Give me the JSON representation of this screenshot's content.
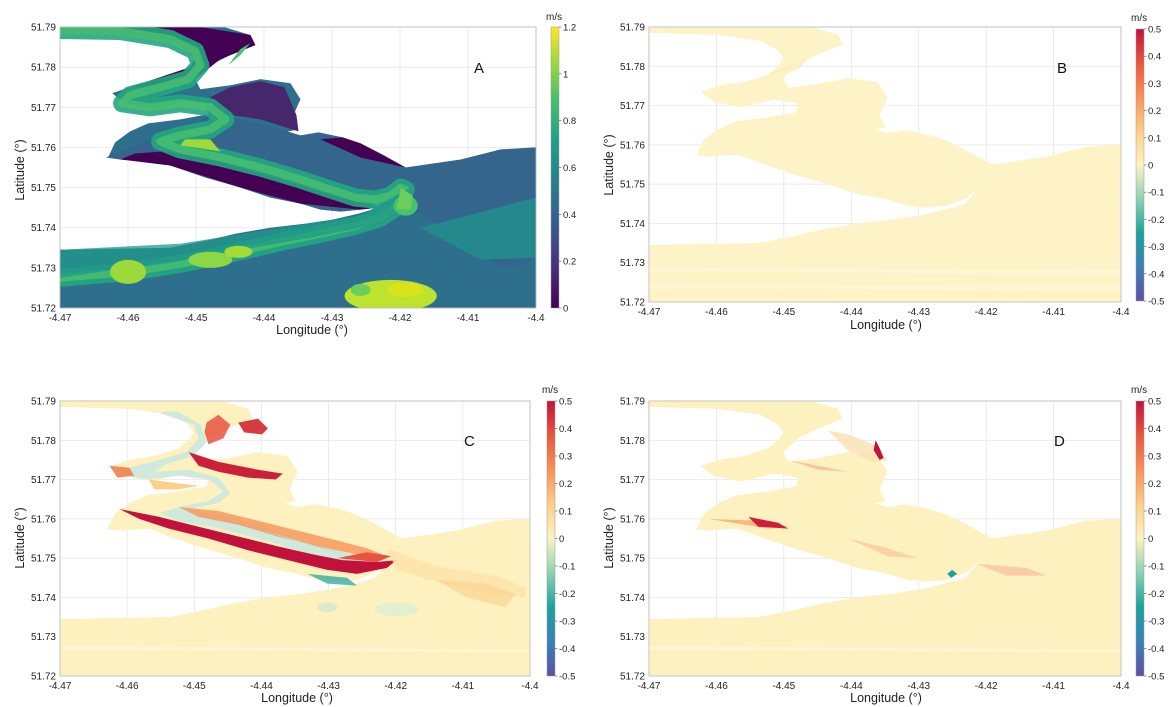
{
  "panels": [
    {
      "id": "A",
      "letter": "A",
      "xlabel": "Longitude (°)",
      "ylabel": "Latitude (°)",
      "x_ticks": [
        "-4.47",
        "-4.46",
        "-4.45",
        "-4.44",
        "-4.43",
        "-4.42",
        "-4.41",
        "-4.4"
      ],
      "y_ticks": [
        "51.72",
        "51.73",
        "51.74",
        "51.75",
        "51.76",
        "51.77",
        "51.78",
        "51.79"
      ],
      "colorbar": {
        "unit": "m/s",
        "ticks": [
          "0",
          "0.2",
          "0.4",
          "0.6",
          "0.8",
          "1",
          "1.2"
        ],
        "range": [
          0,
          1.2
        ],
        "colormap": "viridis"
      }
    },
    {
      "id": "B",
      "letter": "B",
      "xlabel": "Longitude (°)",
      "ylabel": "Latitude (°)",
      "x_ticks": [
        "-4.47",
        "-4.46",
        "-4.45",
        "-4.44",
        "-4.43",
        "-4.42",
        "-4.41",
        "-4.4"
      ],
      "y_ticks": [
        "51.72",
        "51.73",
        "51.74",
        "51.75",
        "51.76",
        "51.77",
        "51.78",
        "51.79"
      ],
      "colorbar": {
        "unit": "m/s",
        "ticks": [
          "-0.5",
          "-0.4",
          "-0.3",
          "-0.2",
          "-0.1",
          "0",
          "0.1",
          "0.2",
          "0.3",
          "0.4",
          "0.5"
        ],
        "range": [
          -0.5,
          0.5
        ],
        "colormap": "spectral"
      }
    },
    {
      "id": "C",
      "letter": "C",
      "xlabel": "Longitude (°)",
      "ylabel": "Latitude (°)",
      "x_ticks": [
        "-4.47",
        "-4.46",
        "-4.45",
        "-4.44",
        "-4.43",
        "-4.42",
        "-4.41",
        "-4.4"
      ],
      "y_ticks": [
        "51.72",
        "51.73",
        "51.74",
        "51.75",
        "51.76",
        "51.77",
        "51.78",
        "51.79"
      ],
      "colorbar": {
        "unit": "m/s",
        "ticks": [
          "-0.5",
          "-0.4",
          "-0.3",
          "-0.2",
          "-0.1",
          "0",
          "0.1",
          "0.2",
          "0.3",
          "0.4",
          "0.5"
        ],
        "range": [
          -0.5,
          0.5
        ],
        "colormap": "spectral"
      }
    },
    {
      "id": "D",
      "letter": "D",
      "xlabel": "Longitude (°)",
      "ylabel": "Latitude (°)",
      "x_ticks": [
        "-4.47",
        "-4.46",
        "-4.45",
        "-4.44",
        "-4.43",
        "-4.42",
        "-4.41",
        "-4.4"
      ],
      "y_ticks": [
        "51.72",
        "51.73",
        "51.74",
        "51.75",
        "51.76",
        "51.77",
        "51.78",
        "51.79"
      ],
      "colorbar": {
        "unit": "m/s",
        "ticks": [
          "-0.5",
          "-0.4",
          "-0.3",
          "-0.2",
          "-0.1",
          "0",
          "0.1",
          "0.2",
          "0.3",
          "0.4",
          "0.5"
        ],
        "range": [
          -0.5,
          0.5
        ],
        "colormap": "spectral"
      }
    }
  ],
  "colors": {
    "land": "#ffffff",
    "grid": "#e3e3e3",
    "viridis_low": "#440154",
    "viridis_mid": "#21918c",
    "viridis_high": "#fde725",
    "spectral_neg": "#5e4fa2",
    "spectral_zero": "#fdf3c0",
    "spectral_pos": "#c2113a"
  }
}
